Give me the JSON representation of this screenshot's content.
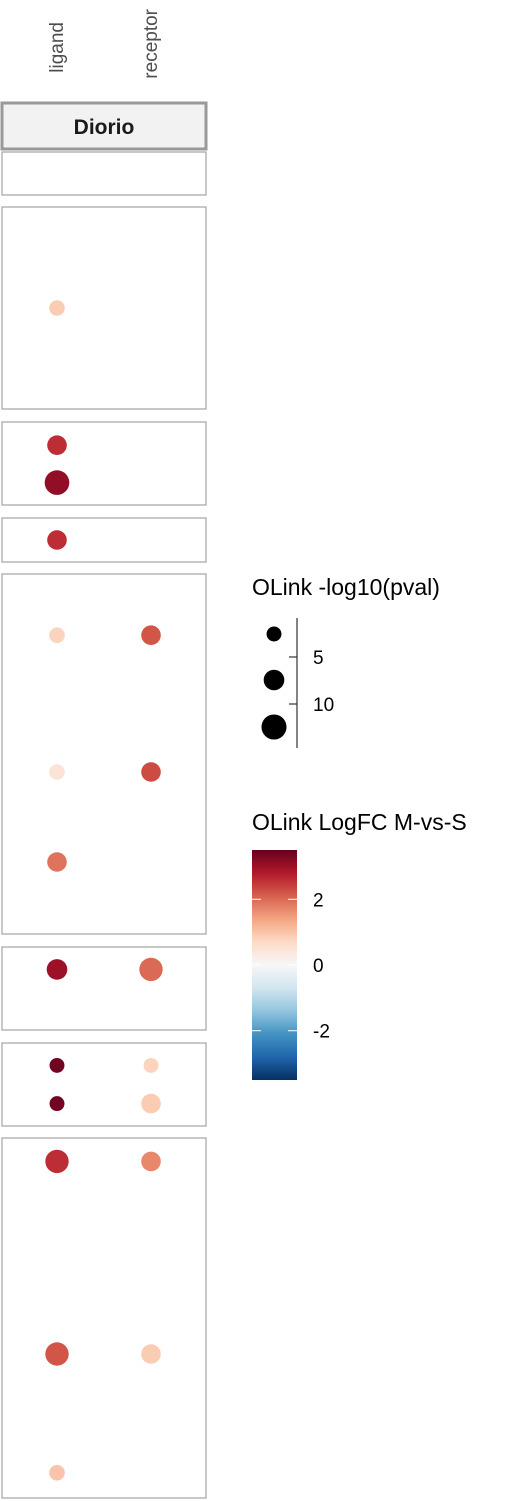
{
  "chart_data": {
    "type": "scatter",
    "facet_label": "Diorio",
    "columns": [
      "ligand",
      "receptor"
    ],
    "panels": [
      {
        "points": []
      },
      {
        "points": [
          {
            "column": "ligand",
            "pos": 0.5,
            "logfc": 0.9,
            "neglog10p": 3
          }
        ]
      },
      {
        "points": [
          {
            "column": "ligand",
            "pos": 0.28,
            "logfc": 2.6,
            "neglog10p": 6.5
          },
          {
            "column": "ligand",
            "pos": 0.73,
            "logfc": 3.1,
            "neglog10p": 12
          }
        ]
      },
      {
        "points": [
          {
            "column": "ligand",
            "pos": 0.5,
            "logfc": 2.6,
            "neglog10p": 6.5
          }
        ]
      },
      {
        "points": [
          {
            "column": "ligand",
            "pos": 0.17,
            "logfc": 0.8,
            "neglog10p": 3
          },
          {
            "column": "receptor",
            "pos": 0.17,
            "logfc": 2.2,
            "neglog10p": 6.5
          },
          {
            "column": "ligand",
            "pos": 0.55,
            "logfc": 0.5,
            "neglog10p": 3
          },
          {
            "column": "receptor",
            "pos": 0.55,
            "logfc": 2.3,
            "neglog10p": 6.5
          },
          {
            "column": "ligand",
            "pos": 0.8,
            "logfc": 1.9,
            "neglog10p": 6.5
          }
        ]
      },
      {
        "points": [
          {
            "column": "ligand",
            "pos": 0.27,
            "logfc": 3.0,
            "neglog10p": 7.5
          },
          {
            "column": "receptor",
            "pos": 0.27,
            "logfc": 2.0,
            "neglog10p": 10.5
          }
        ]
      },
      {
        "points": [
          {
            "column": "ligand",
            "pos": 0.27,
            "logfc": 3.4,
            "neglog10p": 2.5
          },
          {
            "column": "receptor",
            "pos": 0.27,
            "logfc": 0.8,
            "neglog10p": 2.5
          },
          {
            "column": "ligand",
            "pos": 0.73,
            "logfc": 3.4,
            "neglog10p": 2.5
          },
          {
            "column": "receptor",
            "pos": 0.73,
            "logfc": 0.9,
            "neglog10p": 6.5
          }
        ]
      },
      {
        "points": [
          {
            "column": "ligand",
            "pos": 0.065,
            "logfc": 2.6,
            "neglog10p": 10.5
          },
          {
            "column": "receptor",
            "pos": 0.065,
            "logfc": 1.7,
            "neglog10p": 6.5
          },
          {
            "column": "ligand",
            "pos": 0.6,
            "logfc": 2.2,
            "neglog10p": 10.5
          },
          {
            "column": "receptor",
            "pos": 0.6,
            "logfc": 0.9,
            "neglog10p": 6.5
          },
          {
            "column": "ligand",
            "pos": 0.93,
            "logfc": 1.0,
            "neglog10p": 3
          }
        ]
      }
    ],
    "size_legend": {
      "title": "OLink -log10(pval)",
      "ticks": [
        5,
        10
      ],
      "key_values": [
        2.5,
        7.5,
        12.5
      ],
      "range": [
        0,
        15
      ]
    },
    "color_legend": {
      "title": "OLink LogFC M-vs-S",
      "ticks": [
        2,
        0,
        -2
      ],
      "range": [
        -3.5,
        3.5
      ],
      "colors": [
        "#053061",
        "#2166ac",
        "#4393c3",
        "#92c5de",
        "#d1e5f0",
        "#f7f7f7",
        "#fddbc7",
        "#f4a582",
        "#d6604d",
        "#b2182b",
        "#67001f"
      ]
    }
  }
}
